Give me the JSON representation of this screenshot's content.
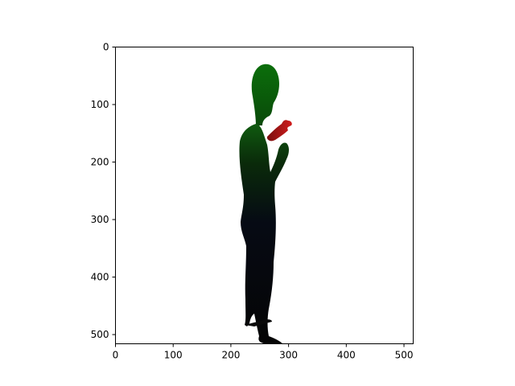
{
  "image": {
    "description_colors": {
      "background": "#ffffff",
      "frame": "#000000",
      "head": "#0e6a0e",
      "raised_hand": "#c01818",
      "body_dark": "#050a10"
    }
  },
  "axes": {
    "xlim": [
      0,
      516
    ],
    "ylim": [
      516,
      0
    ],
    "x_ticks": [
      {
        "value": 0,
        "label": "0"
      },
      {
        "value": 100,
        "label": "100"
      },
      {
        "value": 200,
        "label": "200"
      },
      {
        "value": 300,
        "label": "300"
      },
      {
        "value": 400,
        "label": "400"
      },
      {
        "value": 500,
        "label": "500"
      }
    ],
    "y_ticks": [
      {
        "value": 0,
        "label": "0"
      },
      {
        "value": 100,
        "label": "100"
      },
      {
        "value": 200,
        "label": "200"
      },
      {
        "value": 300,
        "label": "300"
      },
      {
        "value": 400,
        "label": "400"
      },
      {
        "value": 500,
        "label": "500"
      }
    ]
  }
}
